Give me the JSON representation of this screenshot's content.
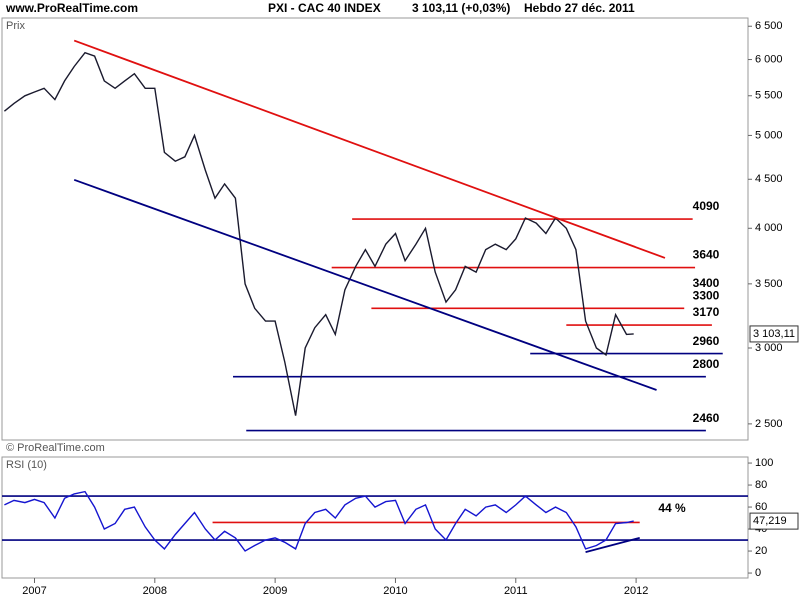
{
  "chart_data": [
    {
      "type": "line",
      "site": "www.ProRealTime.com",
      "title": "PXI - CAC 40 INDEX",
      "quote": "3 103,11 (+0,03%)",
      "subtitle": "Hebdo  27 déc. 2011",
      "label": "Prix",
      "watermark": "© ProRealTime.com",
      "log_scale": true,
      "color": "#1a1a2e",
      "xlim": [
        2006.73,
        2012.93
      ],
      "ylim": [
        2405,
        6630
      ],
      "yticks": [
        {
          "value": 6500,
          "label": "6 500"
        },
        {
          "value": 6000,
          "label": "6 000"
        },
        {
          "value": 5500,
          "label": "5 500"
        },
        {
          "value": 5000,
          "label": "5 000"
        },
        {
          "value": 4500,
          "label": "4 500"
        },
        {
          "value": 4000,
          "label": "4 000"
        },
        {
          "value": 3500,
          "label": "3 500"
        },
        {
          "value": 3000,
          "label": "3 000"
        },
        {
          "value": 2500,
          "label": "2 500"
        }
      ],
      "x": [
        2006.75,
        2006.83,
        2006.92,
        2007.0,
        2007.08,
        2007.17,
        2007.25,
        2007.33,
        2007.42,
        2007.5,
        2007.58,
        2007.67,
        2007.75,
        2007.83,
        2007.92,
        2008.0,
        2008.08,
        2008.17,
        2008.25,
        2008.33,
        2008.42,
        2008.5,
        2008.58,
        2008.67,
        2008.75,
        2008.83,
        2008.92,
        2009.0,
        2009.08,
        2009.17,
        2009.25,
        2009.33,
        2009.42,
        2009.5,
        2009.58,
        2009.67,
        2009.75,
        2009.83,
        2009.92,
        2010.0,
        2010.08,
        2010.17,
        2010.25,
        2010.33,
        2010.42,
        2010.5,
        2010.58,
        2010.67,
        2010.75,
        2010.83,
        2010.92,
        2011.0,
        2011.08,
        2011.17,
        2011.25,
        2011.33,
        2011.42,
        2011.5,
        2011.58,
        2011.67,
        2011.75,
        2011.83,
        2011.92,
        2011.98
      ],
      "values": [
        5300,
        5400,
        5500,
        5550,
        5600,
        5450,
        5700,
        5900,
        6100,
        6050,
        5700,
        5600,
        5700,
        5800,
        5600,
        5600,
        4800,
        4700,
        4750,
        5000,
        4600,
        4300,
        4450,
        4300,
        3500,
        3300,
        3200,
        3200,
        2900,
        2550,
        3000,
        3150,
        3250,
        3100,
        3450,
        3650,
        3800,
        3650,
        3850,
        3950,
        3700,
        3850,
        4000,
        3600,
        3350,
        3450,
        3650,
        3600,
        3800,
        3850,
        3800,
        3900,
        4100,
        4050,
        3950,
        4100,
        4000,
        3800,
        3200,
        3000,
        2950,
        3250,
        3100,
        3103.11
      ],
      "last": {
        "value": 3103.11,
        "label": "3 103,11"
      },
      "levels": [
        {
          "value": 4090,
          "from": 2009.64,
          "to": 2012.47,
          "color": "#e01010"
        },
        {
          "value": 3640,
          "from": 2009.47,
          "to": 2012.49,
          "color": "#e01010"
        },
        {
          "value": 3300,
          "from": 2009.8,
          "to": 2012.4,
          "color": "#e01010"
        },
        {
          "value": 3170,
          "from": 2011.42,
          "to": 2012.63,
          "color": "#e01010"
        },
        {
          "value": 2960,
          "from": 2011.12,
          "to": 2012.72,
          "color": "#000080"
        },
        {
          "value": 2800,
          "from": 2008.65,
          "to": 2012.58,
          "color": "#000080"
        },
        {
          "value": 2460,
          "from": 2008.76,
          "to": 2012.58,
          "color": "#000080"
        }
      ],
      "trendlines": [
        {
          "x": [
            2007.33,
            2012.24
          ],
          "y": [
            6280,
            3725
          ],
          "color": "#e01010"
        },
        {
          "x": [
            2007.33,
            2012.17
          ],
          "y": [
            4494,
            2712
          ],
          "color": "#000080"
        }
      ],
      "level_labels": [
        4090,
        3640,
        3400,
        3300,
        3170,
        2960,
        2800,
        2460
      ]
    },
    {
      "type": "line",
      "label": "RSI (10)",
      "log_scale": false,
      "color": "#1515d0",
      "xlim": [
        2006.73,
        2012.93
      ],
      "ylim": [
        -4.5,
        105.5
      ],
      "yticks": [
        0,
        20,
        40,
        60,
        80,
        100
      ],
      "xticks": [
        2007,
        2008,
        2009,
        2010,
        2011,
        2012
      ],
      "x": [
        2006.75,
        2006.83,
        2006.92,
        2007.0,
        2007.08,
        2007.17,
        2007.25,
        2007.33,
        2007.42,
        2007.5,
        2007.58,
        2007.67,
        2007.75,
        2007.83,
        2007.92,
        2008.0,
        2008.08,
        2008.17,
        2008.25,
        2008.33,
        2008.42,
        2008.5,
        2008.58,
        2008.67,
        2008.75,
        2008.83,
        2008.92,
        2009.0,
        2009.08,
        2009.17,
        2009.25,
        2009.33,
        2009.42,
        2009.5,
        2009.58,
        2009.67,
        2009.75,
        2009.83,
        2009.92,
        2010.0,
        2010.08,
        2010.17,
        2010.25,
        2010.33,
        2010.42,
        2010.5,
        2010.58,
        2010.67,
        2010.75,
        2010.83,
        2010.92,
        2011.0,
        2011.08,
        2011.17,
        2011.25,
        2011.33,
        2011.42,
        2011.5,
        2011.58,
        2011.67,
        2011.75,
        2011.83,
        2011.92,
        2011.98
      ],
      "values": [
        62,
        66,
        64,
        67,
        64,
        50,
        68,
        72,
        74,
        60,
        40,
        45,
        58,
        60,
        42,
        30,
        22,
        35,
        45,
        55,
        40,
        30,
        38,
        32,
        20,
        25,
        30,
        32,
        28,
        22,
        45,
        55,
        58,
        50,
        62,
        68,
        70,
        60,
        65,
        66,
        45,
        58,
        62,
        40,
        30,
        45,
        58,
        52,
        60,
        62,
        55,
        62,
        70,
        62,
        55,
        60,
        55,
        42,
        22,
        25,
        30,
        45,
        46,
        47.219
      ],
      "last": {
        "value": 47.219,
        "label": "47,219"
      },
      "levels": [
        {
          "value": 70,
          "from": 2006.73,
          "to": 2012.93,
          "color": "#000080"
        },
        {
          "value": 30,
          "from": 2006.73,
          "to": 2012.93,
          "color": "#000080"
        },
        {
          "value": 46,
          "from": 2008.48,
          "to": 2012.03,
          "color": "#e01010"
        }
      ],
      "trendlines": [
        {
          "x": [
            2011.58,
            2012.03
          ],
          "y": [
            19,
            32
          ],
          "color": "#000080"
        }
      ],
      "annotation": "44 %"
    }
  ]
}
